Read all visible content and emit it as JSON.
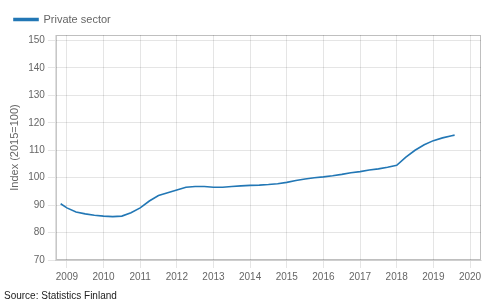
{
  "chart_data": {
    "type": "line",
    "y_label": "Index (2015=100)",
    "annotations": [
      "Source: Statistics Finland"
    ],
    "x": [
      2008.83,
      2009.0,
      2009.25,
      2009.5,
      2009.75,
      2010.0,
      2010.25,
      2010.5,
      2010.75,
      2011.0,
      2011.25,
      2011.5,
      2011.75,
      2012.0,
      2012.25,
      2012.5,
      2012.75,
      2013.0,
      2013.25,
      2013.5,
      2013.75,
      2014.0,
      2014.25,
      2014.5,
      2014.75,
      2015.0,
      2015.25,
      2015.5,
      2015.75,
      2016.0,
      2016.25,
      2016.5,
      2016.75,
      2017.0,
      2017.25,
      2017.5,
      2017.75,
      2018.0,
      2018.25,
      2018.5,
      2018.75,
      2019.0,
      2019.25,
      2019.5,
      2019.58
    ],
    "series": [
      {
        "name": "Private sector",
        "color": "#2277b5",
        "values": [
          90.5,
          89.0,
          87.5,
          86.8,
          86.3,
          86.0,
          85.8,
          86.0,
          87.2,
          89.0,
          91.5,
          93.5,
          94.5,
          95.5,
          96.5,
          96.8,
          96.8,
          96.5,
          96.5,
          96.8,
          97.0,
          97.2,
          97.3,
          97.5,
          97.8,
          98.3,
          99.0,
          99.5,
          100.0,
          100.3,
          100.7,
          101.2,
          101.8,
          102.2,
          102.8,
          103.2,
          103.8,
          104.5,
          107.5,
          110.0,
          112.0,
          113.5,
          114.5,
          115.3,
          115.5
        ]
      }
    ],
    "xlim": [
      2008.7,
      2020.3
    ],
    "xticks": [
      2009,
      2010,
      2011,
      2012,
      2013,
      2014,
      2015,
      2016,
      2017,
      2018,
      2019,
      2020
    ],
    "ylim": [
      70,
      152
    ],
    "yticks": [
      70,
      80,
      90,
      100,
      110,
      120,
      130,
      140,
      150
    ],
    "grid": true,
    "legend": "upper left"
  }
}
